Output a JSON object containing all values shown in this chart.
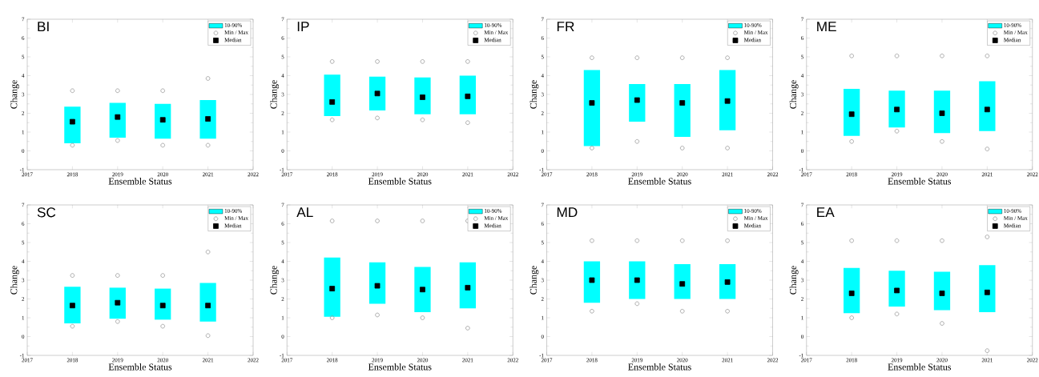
{
  "chart_data": [
    {
      "type": "bar",
      "title": "BI",
      "xlabel": "Ensemble Status",
      "ylabel": "Change",
      "xlim": [
        2017,
        2022
      ],
      "xticks": [
        2017,
        2018,
        2019,
        2020,
        2021,
        2022
      ],
      "ylim": [
        -1,
        7
      ],
      "yticks": [
        -1,
        0,
        1,
        2,
        3,
        4,
        5,
        6,
        7
      ],
      "legend": "top right",
      "series": [
        {
          "name": "10-90%",
          "color": "#00ffff",
          "x": [
            2018,
            2019,
            2020,
            2021
          ],
          "base": [
            0.4,
            0.7,
            0.65,
            0.65
          ],
          "values": [
            1.95,
            1.85,
            1.85,
            2.05
          ]
        },
        {
          "type": "scatter",
          "name": "Min / Max",
          "color": "#999999",
          "marker": "circle",
          "x": [
            2018,
            2018,
            2019,
            2019,
            2020,
            2020,
            2021,
            2021
          ],
          "values": [
            0.3,
            3.2,
            0.55,
            3.2,
            0.3,
            3.2,
            0.3,
            3.85
          ]
        },
        {
          "type": "scatter",
          "name": "Median",
          "color": "#000000",
          "marker": "square",
          "x": [
            2018,
            2019,
            2020,
            2021
          ],
          "values": [
            1.55,
            1.8,
            1.65,
            1.7
          ]
        }
      ]
    },
    {
      "type": "bar",
      "title": "IP",
      "xlabel": "Ensemble Status",
      "ylabel": "Change",
      "xlim": [
        2017,
        2022
      ],
      "xticks": [
        2017,
        2018,
        2019,
        2020,
        2021,
        2022
      ],
      "ylim": [
        -1,
        7
      ],
      "yticks": [
        -1,
        0,
        1,
        2,
        3,
        4,
        5,
        6,
        7
      ],
      "legend": "top right",
      "series": [
        {
          "name": "10-90%",
          "color": "#00ffff",
          "x": [
            2018,
            2019,
            2020,
            2021
          ],
          "base": [
            1.85,
            2.15,
            1.95,
            1.95
          ],
          "values": [
            2.2,
            1.8,
            1.95,
            2.05
          ]
        },
        {
          "type": "scatter",
          "name": "Min / Max",
          "color": "#999999",
          "marker": "circle",
          "x": [
            2018,
            2018,
            2019,
            2019,
            2020,
            2020,
            2021,
            2021
          ],
          "values": [
            1.65,
            4.75,
            1.75,
            4.75,
            1.65,
            4.75,
            1.5,
            4.75
          ]
        },
        {
          "type": "scatter",
          "name": "Median",
          "color": "#000000",
          "marker": "square",
          "x": [
            2018,
            2019,
            2020,
            2021
          ],
          "values": [
            2.6,
            3.05,
            2.85,
            2.9
          ]
        }
      ]
    },
    {
      "type": "bar",
      "title": "FR",
      "xlabel": "Ensemble Status",
      "ylabel": "Change",
      "xlim": [
        2017,
        2022
      ],
      "xticks": [
        2017,
        2018,
        2019,
        2020,
        2021,
        2022
      ],
      "ylim": [
        -1,
        7
      ],
      "yticks": [
        -1,
        0,
        1,
        2,
        3,
        4,
        5,
        6,
        7
      ],
      "legend": "top right",
      "series": [
        {
          "name": "10-90%",
          "color": "#00ffff",
          "x": [
            2018,
            2019,
            2020,
            2021
          ],
          "base": [
            0.25,
            1.55,
            0.75,
            1.1
          ],
          "values": [
            4.05,
            2.0,
            2.8,
            3.2
          ]
        },
        {
          "type": "scatter",
          "name": "Min / Max",
          "color": "#999999",
          "marker": "circle",
          "x": [
            2018,
            2018,
            2019,
            2019,
            2020,
            2020,
            2021,
            2021
          ],
          "values": [
            0.15,
            4.95,
            0.5,
            4.95,
            0.15,
            4.95,
            0.15,
            4.95
          ]
        },
        {
          "type": "scatter",
          "name": "Median",
          "color": "#000000",
          "marker": "square",
          "x": [
            2018,
            2019,
            2020,
            2021
          ],
          "values": [
            2.55,
            2.7,
            2.55,
            2.65
          ]
        }
      ]
    },
    {
      "type": "bar",
      "title": "ME",
      "xlabel": "Ensemble Status",
      "ylabel": "Change",
      "xlim": [
        2017,
        2022
      ],
      "xticks": [
        2017,
        2018,
        2019,
        2020,
        2021,
        2022
      ],
      "ylim": [
        -1,
        7
      ],
      "yticks": [
        -1,
        0,
        1,
        2,
        3,
        4,
        5,
        6,
        7
      ],
      "legend": "top right",
      "series": [
        {
          "name": "10-90%",
          "color": "#00ffff",
          "x": [
            2018,
            2019,
            2020,
            2021
          ],
          "base": [
            0.8,
            1.25,
            0.95,
            1.05
          ],
          "values": [
            2.5,
            1.95,
            2.25,
            2.65
          ]
        },
        {
          "type": "scatter",
          "name": "Min / Max",
          "color": "#999999",
          "marker": "circle",
          "x": [
            2018,
            2018,
            2019,
            2019,
            2020,
            2020,
            2021,
            2021
          ],
          "values": [
            0.5,
            5.05,
            1.05,
            5.05,
            0.5,
            5.05,
            0.1,
            5.05
          ]
        },
        {
          "type": "scatter",
          "name": "Median",
          "color": "#000000",
          "marker": "square",
          "x": [
            2018,
            2019,
            2020,
            2021
          ],
          "values": [
            1.95,
            2.2,
            2.0,
            2.2
          ]
        }
      ]
    },
    {
      "type": "bar",
      "title": "SC",
      "xlabel": "Ensemble Status",
      "ylabel": "Change",
      "xlim": [
        2017,
        2022
      ],
      "xticks": [
        2017,
        2018,
        2019,
        2020,
        2021,
        2022
      ],
      "ylim": [
        -1,
        7
      ],
      "yticks": [
        -1,
        0,
        1,
        2,
        3,
        4,
        5,
        6,
        7
      ],
      "legend": "top right",
      "series": [
        {
          "name": "10-90%",
          "color": "#00ffff",
          "x": [
            2018,
            2019,
            2020,
            2021
          ],
          "base": [
            0.7,
            0.95,
            0.9,
            0.8
          ],
          "values": [
            1.95,
            1.65,
            1.65,
            2.05
          ]
        },
        {
          "type": "scatter",
          "name": "Min / Max",
          "color": "#999999",
          "marker": "circle",
          "x": [
            2018,
            2018,
            2019,
            2019,
            2020,
            2020,
            2021,
            2021
          ],
          "values": [
            0.55,
            3.25,
            0.8,
            3.25,
            0.55,
            3.25,
            0.05,
            4.5
          ]
        },
        {
          "type": "scatter",
          "name": "Median",
          "color": "#000000",
          "marker": "square",
          "x": [
            2018,
            2019,
            2020,
            2021
          ],
          "values": [
            1.65,
            1.8,
            1.65,
            1.65
          ]
        }
      ]
    },
    {
      "type": "bar",
      "title": "AL",
      "xlabel": "Ensemble Status",
      "ylabel": "Change",
      "xlim": [
        2017,
        2022
      ],
      "xticks": [
        2017,
        2018,
        2019,
        2020,
        2021,
        2022
      ],
      "ylim": [
        -1,
        7
      ],
      "yticks": [
        -1,
        0,
        1,
        2,
        3,
        4,
        5,
        6,
        7
      ],
      "legend": "top right",
      "series": [
        {
          "name": "10-90%",
          "color": "#00ffff",
          "x": [
            2018,
            2019,
            2020,
            2021
          ],
          "base": [
            1.05,
            1.75,
            1.3,
            1.5
          ],
          "values": [
            3.15,
            2.2,
            2.4,
            2.45
          ]
        },
        {
          "type": "scatter",
          "name": "Min / Max",
          "color": "#999999",
          "marker": "circle",
          "x": [
            2018,
            2018,
            2019,
            2019,
            2020,
            2020,
            2021,
            2021
          ],
          "values": [
            1.0,
            6.15,
            1.15,
            6.15,
            1.0,
            6.15,
            0.45,
            6.15
          ]
        },
        {
          "type": "scatter",
          "name": "Median",
          "color": "#000000",
          "marker": "square",
          "x": [
            2018,
            2019,
            2020,
            2021
          ],
          "values": [
            2.55,
            2.7,
            2.5,
            2.6
          ]
        }
      ]
    },
    {
      "type": "bar",
      "title": "MD",
      "xlabel": "Ensemble Status",
      "ylabel": "Change",
      "xlim": [
        2017,
        2022
      ],
      "xticks": [
        2017,
        2018,
        2019,
        2020,
        2021,
        2022
      ],
      "ylim": [
        -1,
        7
      ],
      "yticks": [
        -1,
        0,
        1,
        2,
        3,
        4,
        5,
        6,
        7
      ],
      "legend": "top right",
      "series": [
        {
          "name": "10-90%",
          "color": "#00ffff",
          "x": [
            2018,
            2019,
            2020,
            2021
          ],
          "base": [
            1.8,
            2.0,
            2.0,
            2.0
          ],
          "values": [
            2.2,
            2.0,
            1.85,
            1.85
          ]
        },
        {
          "type": "scatter",
          "name": "Min / Max",
          "color": "#999999",
          "marker": "circle",
          "x": [
            2018,
            2018,
            2019,
            2019,
            2020,
            2020,
            2021,
            2021
          ],
          "values": [
            1.35,
            5.1,
            1.75,
            5.1,
            1.35,
            5.1,
            1.35,
            5.1
          ]
        },
        {
          "type": "scatter",
          "name": "Median",
          "color": "#000000",
          "marker": "square",
          "x": [
            2018,
            2019,
            2020,
            2021
          ],
          "values": [
            3.0,
            3.0,
            2.8,
            2.9
          ]
        }
      ]
    },
    {
      "type": "bar",
      "title": "EA",
      "xlabel": "Ensemble Status",
      "ylabel": "Change",
      "xlim": [
        2017,
        2022
      ],
      "xticks": [
        2017,
        2018,
        2019,
        2020,
        2021,
        2022
      ],
      "ylim": [
        -1,
        7
      ],
      "yticks": [
        -1,
        0,
        1,
        2,
        3,
        4,
        5,
        6,
        7
      ],
      "legend": "top right",
      "series": [
        {
          "name": "10-90%",
          "color": "#00ffff",
          "x": [
            2018,
            2019,
            2020,
            2021
          ],
          "base": [
            1.25,
            1.6,
            1.4,
            1.3
          ],
          "values": [
            2.4,
            1.9,
            2.05,
            2.5
          ]
        },
        {
          "type": "scatter",
          "name": "Min / Max",
          "color": "#999999",
          "marker": "circle",
          "x": [
            2018,
            2018,
            2019,
            2019,
            2020,
            2020,
            2021,
            2021
          ],
          "values": [
            1.0,
            5.1,
            1.2,
            5.1,
            0.7,
            5.1,
            -0.75,
            5.3
          ]
        },
        {
          "type": "scatter",
          "name": "Median",
          "color": "#000000",
          "marker": "square",
          "x": [
            2018,
            2019,
            2020,
            2021
          ],
          "values": [
            2.3,
            2.45,
            2.3,
            2.35
          ]
        }
      ]
    }
  ]
}
